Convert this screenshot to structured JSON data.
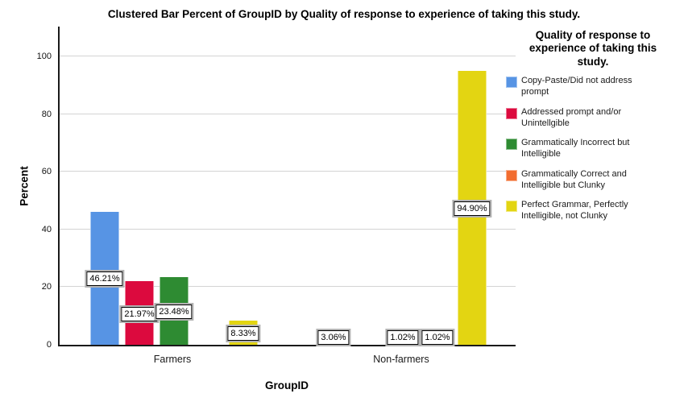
{
  "chart_data": {
    "type": "bar",
    "title": "Clustered Bar Percent of GroupID by Quality of response to experience of taking this study.",
    "xlabel": "GroupID",
    "ylabel": "Percent",
    "ylim": [
      0,
      110
    ],
    "yticks": [
      0,
      20,
      40,
      60,
      80,
      100
    ],
    "grid": "horizontal",
    "legend_position": "right",
    "legend_title": "Quality of response to experience of taking this study.",
    "categories": [
      "Farmers",
      "Non-farmers"
    ],
    "series": [
      {
        "name": "Copy-Paste/Did not address prompt",
        "color": "#5794E4",
        "values": [
          46.21,
          3.06
        ]
      },
      {
        "name": "Addressed prompt and/or Unintellgible",
        "color": "#DC0A3E",
        "values": [
          21.97,
          0
        ]
      },
      {
        "name": "Grammatically Incorrect but Intelligible",
        "color": "#2E8B32",
        "values": [
          23.48,
          1.02
        ]
      },
      {
        "name": "Grammatically Correct and Intelligible but Clunky",
        "color": "#F26D30",
        "values": [
          0,
          1.02
        ]
      },
      {
        "name": "Perfect Grammar, Perfectly Intelligible, not Clunky",
        "color": "#E3D512",
        "values": [
          8.33,
          94.9
        ]
      }
    ],
    "value_labels": [
      [
        "46.21%",
        "3.06%"
      ],
      [
        "21.97%",
        null
      ],
      [
        "23.48%",
        "1.02%"
      ],
      [
        null,
        "1.02%"
      ],
      [
        "8.33%",
        "94.90%"
      ]
    ]
  }
}
